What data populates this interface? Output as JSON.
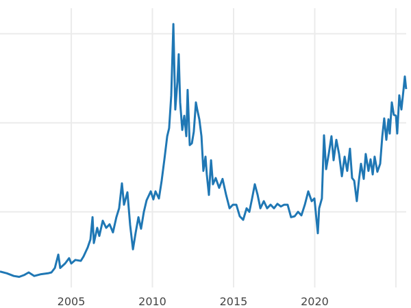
{
  "chart_data": {
    "type": "line",
    "title": "",
    "xlabel": "",
    "ylabel": "",
    "xlim": [
      2000.61,
      2025.93
    ],
    "ylim": [
      -0.8,
      33.8
    ],
    "grid": true,
    "x_ticks": [
      2005,
      2010,
      2015,
      2020,
      2025
    ],
    "x_tick_labels": [
      "2005",
      "2010",
      "2015",
      "2020",
      ""
    ],
    "y_gridlines": [
      10,
      20,
      30
    ],
    "color": "#1f77b4",
    "series": [
      {
        "x": [
          2000.61,
          2001.03,
          2001.46,
          2001.79,
          2002.09,
          2002.38,
          2002.72,
          2003.14,
          2003.57,
          2003.78,
          2003.99,
          2004.2,
          2004.32,
          2004.62,
          2004.87,
          2005.0,
          2005.25,
          2005.59,
          2005.76,
          2006.01,
          2006.18,
          2006.31,
          2006.39,
          2006.6,
          2006.73,
          2006.94,
          2007.15,
          2007.36,
          2007.57,
          2007.78,
          2007.95,
          2008.12,
          2008.25,
          2008.46,
          2008.63,
          2008.8,
          2008.97,
          2009.14,
          2009.3,
          2009.47,
          2009.64,
          2009.9,
          2010.06,
          2010.19,
          2010.4,
          2010.57,
          2010.74,
          2010.91,
          2011.03,
          2011.16,
          2011.29,
          2011.41,
          2011.54,
          2011.62,
          2011.71,
          2011.84,
          2011.96,
          2012.09,
          2012.17,
          2012.3,
          2012.43,
          2012.55,
          2012.68,
          2012.76,
          2012.89,
          2013.02,
          2013.14,
          2013.27,
          2013.35,
          2013.48,
          2013.61,
          2013.73,
          2013.9,
          2014.11,
          2014.32,
          2014.54,
          2014.75,
          2014.96,
          2015.17,
          2015.38,
          2015.59,
          2015.8,
          2015.97,
          2016.14,
          2016.31,
          2016.48,
          2016.65,
          2016.86,
          2017.07,
          2017.28,
          2017.49,
          2017.7,
          2017.91,
          2018.12,
          2018.33,
          2018.54,
          2018.76,
          2018.97,
          2019.18,
          2019.39,
          2019.6,
          2019.81,
          2019.98,
          2020.19,
          2020.27,
          2020.44,
          2020.57,
          2020.7,
          2020.86,
          2021.03,
          2021.16,
          2021.33,
          2021.5,
          2021.67,
          2021.84,
          2022.0,
          2022.17,
          2022.3,
          2022.43,
          2022.59,
          2022.72,
          2022.85,
          2023.02,
          2023.14,
          2023.31,
          2023.44,
          2023.57,
          2023.69,
          2023.86,
          2024.03,
          2024.16,
          2024.28,
          2024.41,
          2024.54,
          2024.62,
          2024.75,
          2024.87,
          2025.0,
          2025.08,
          2025.21,
          2025.34,
          2025.46,
          2025.55,
          2025.63
        ],
        "y": [
          3.3,
          3.1,
          2.8,
          2.7,
          2.9,
          3.2,
          2.8,
          3.0,
          3.1,
          3.2,
          3.7,
          5.2,
          3.7,
          4.2,
          4.8,
          4.2,
          4.6,
          4.5,
          5.0,
          6.0,
          6.9,
          9.4,
          6.5,
          8.2,
          7.3,
          9.0,
          8.2,
          8.6,
          7.7,
          9.4,
          10.4,
          13.2,
          10.8,
          12.2,
          8.5,
          5.8,
          7.7,
          9.4,
          8.1,
          10.0,
          11.3,
          12.3,
          11.4,
          12.3,
          11.5,
          13.5,
          15.9,
          18.5,
          19.4,
          23.1,
          31.1,
          21.5,
          24.6,
          27.7,
          22.3,
          19.2,
          20.8,
          18.5,
          23.7,
          17.5,
          17.7,
          19.0,
          22.3,
          21.5,
          20.4,
          18.5,
          14.6,
          16.2,
          14.2,
          11.9,
          15.8,
          13.1,
          13.8,
          12.7,
          13.7,
          11.9,
          10.4,
          10.8,
          10.8,
          9.5,
          9.1,
          10.4,
          10.0,
          11.5,
          13.1,
          11.9,
          10.4,
          11.2,
          10.4,
          10.8,
          10.4,
          10.9,
          10.6,
          10.8,
          10.8,
          9.4,
          9.5,
          10.0,
          9.6,
          10.8,
          12.3,
          11.2,
          11.5,
          7.6,
          10.4,
          11.5,
          18.6,
          14.8,
          16.5,
          18.5,
          15.8,
          18.1,
          16.5,
          14.0,
          16.2,
          14.6,
          17.1,
          13.8,
          13.5,
          11.2,
          13.5,
          15.4,
          13.7,
          16.5,
          14.6,
          15.9,
          14.2,
          16.2,
          14.5,
          15.4,
          18.5,
          20.5,
          18.1,
          20.4,
          18.8,
          22.3,
          20.9,
          20.8,
          18.8,
          23.1,
          21.5,
          23.6,
          25.2,
          23.8
        ]
      }
    ]
  }
}
